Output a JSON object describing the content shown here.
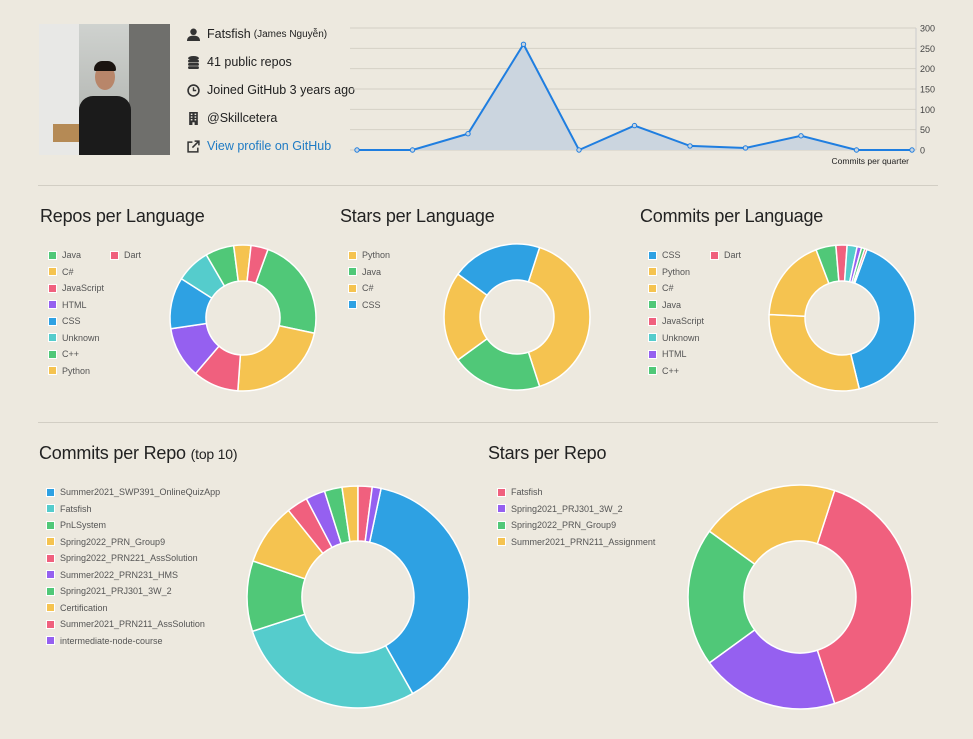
{
  "profile": {
    "username": "Fatsfish",
    "full_name": "(James Nguyễn)",
    "repos": "41 public repos",
    "joined": "Joined GitHub 3 years ago",
    "company": "@Skillcetera",
    "profile_link": "View profile on GitHub",
    "icons": [
      "user-icon",
      "database-icon",
      "clock-icon",
      "building-icon",
      "external-link-icon"
    ],
    "link_color": "#1f7bc4"
  },
  "chart_data": [
    {
      "id": "commits-quarter",
      "type": "area",
      "xlabel": "Commits per quarter",
      "values": [
        0,
        0,
        40,
        260,
        0,
        60,
        10,
        5,
        35,
        0,
        0
      ],
      "ylim": [
        0,
        300
      ],
      "yticks": [
        "0",
        "50",
        "100",
        "150",
        "200",
        "250",
        "300"
      ],
      "grid": true,
      "color": "#1f7ee0",
      "fill": "#cbd5df"
    },
    {
      "id": "repos-lang",
      "type": "pie",
      "title": "Repos per Language",
      "labels": [
        "Java",
        "C#",
        "JavaScript",
        "HTML",
        "CSS",
        "Unknown",
        "C++",
        "Python",
        "Dart"
      ],
      "values": [
        9,
        9,
        4,
        4.5,
        4.5,
        3,
        2.5,
        1.5,
        1.5
      ],
      "colors": [
        "#50c878",
        "#f5c350",
        "#f0607e",
        "#9560f0",
        "#2ea1e3",
        "#55cccc",
        "#50c878",
        "#f5c350",
        "#f0607e"
      ],
      "legend": "left"
    },
    {
      "id": "stars-lang",
      "type": "pie",
      "title": "Stars per Language",
      "labels": [
        "Python",
        "Java",
        "C#",
        "CSS"
      ],
      "values": [
        2,
        1,
        1,
        1
      ],
      "colors": [
        "#f5c350",
        "#50c878",
        "#f5c350",
        "#2ea1e3"
      ],
      "legend": "left"
    },
    {
      "id": "commits-lang",
      "type": "pie",
      "title": "Commits per Language",
      "labels": [
        "CSS",
        "Python",
        "C#",
        "Java",
        "JavaScript",
        "Unknown",
        "HTML",
        "C++",
        "Dart"
      ],
      "values": [
        165,
        120,
        75,
        18,
        10,
        9,
        4,
        3,
        2
      ],
      "colors": [
        "#2ea1e3",
        "#f5c350",
        "#f5c350",
        "#50c878",
        "#f0607e",
        "#55cccc",
        "#9560f0",
        "#50c878",
        "#f0607e"
      ],
      "legend": "left"
    },
    {
      "id": "commits-repo",
      "type": "pie",
      "title": "Commits per Repo",
      "title_suffix": "(top 10)",
      "labels": [
        "Summer2021_SWP391_OnlineQuizApp",
        "Fatsfish",
        "PnLSystem",
        "Spring2022_PRN_Group9",
        "Spring2022_PRN221_AssSolution",
        "Summer2022_PRN231_HMS",
        "Spring2021_PRJ301_3W_2",
        "Certification",
        "Summer2021_PRN211_AssSolution",
        "intermediate-node-course"
      ],
      "values": [
        150,
        110,
        40,
        35,
        12,
        11,
        10,
        9,
        8,
        5
      ],
      "colors": [
        "#2ea1e3",
        "#55cccc",
        "#50c878",
        "#f5c350",
        "#f0607e",
        "#9560f0",
        "#50c878",
        "#f5c350",
        "#f0607e",
        "#9560f0"
      ],
      "legend": "left"
    },
    {
      "id": "stars-repo",
      "type": "pie",
      "title": "Stars per Repo",
      "labels": [
        "Fatsfish",
        "Spring2021_PRJ301_3W_2",
        "Spring2022_PRN_Group9",
        "Summer2021_PRN211_Assignment"
      ],
      "values": [
        2,
        1,
        1,
        1
      ],
      "colors": [
        "#f0607e",
        "#9560f0",
        "#50c878",
        "#f5c350"
      ],
      "legend": "left"
    }
  ]
}
